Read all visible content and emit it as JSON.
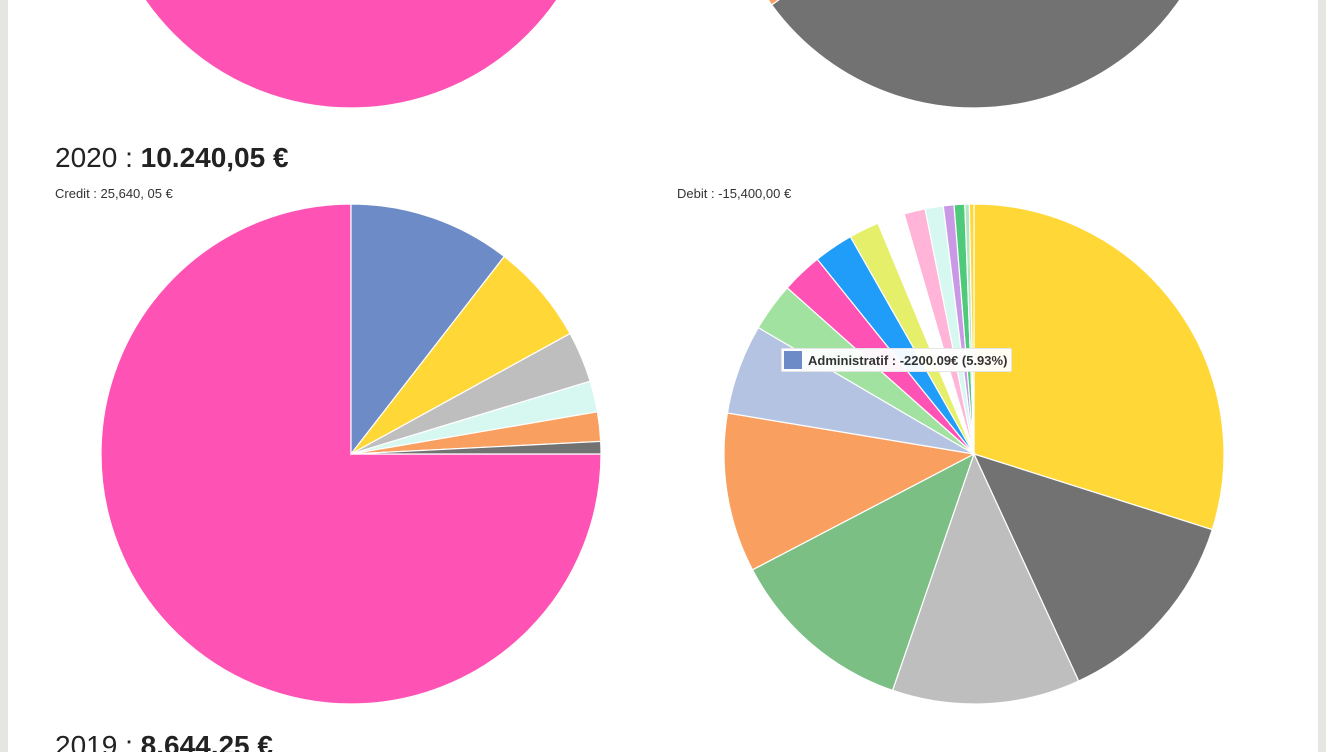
{
  "sections": [
    {
      "heading_prefix": "2020 :",
      "heading_total": "10.240,05 €",
      "credit_label": "Credit : 25,640, 05 €",
      "debit_label": "Debit : -15,400,00 €"
    },
    {
      "heading_prefix": "2019 :",
      "heading_total": "8.644,25 €"
    }
  ],
  "tooltip": {
    "text": "Administratif : -2200.09€ (5.93%)",
    "color": "#6c8bc7"
  },
  "chart_data": [
    {
      "type": "pie",
      "name": "top-credit-partial",
      "values": [
        75,
        25
      ],
      "colors": [
        "#ff52b5",
        "#ffffff"
      ],
      "note": "previous year credit pie, mostly cut off"
    },
    {
      "type": "pie",
      "name": "top-debit-partial",
      "values": [
        40,
        10,
        50
      ],
      "colors": [
        "#727272",
        "#f9a060",
        "#ffffff"
      ]
    },
    {
      "type": "pie",
      "title": "Credit : 25,640, 05 €",
      "slices": [
        {
          "value": 75.0,
          "color": "#ff52b5"
        },
        {
          "value": 10.5,
          "color": "#6c8bc7"
        },
        {
          "value": 6.5,
          "color": "#ffd736"
        },
        {
          "value": 3.3,
          "color": "#bebebe"
        },
        {
          "value": 2.0,
          "color": "#d7f7f1"
        },
        {
          "value": 1.9,
          "color": "#f9a060"
        },
        {
          "value": 0.8,
          "color": "#727272"
        }
      ]
    },
    {
      "type": "pie",
      "title": "Debit : -15,400,00 €",
      "slices": [
        {
          "value": 30.5,
          "color": "#ffd736"
        },
        {
          "value": 13.5,
          "color": "#727272"
        },
        {
          "value": 12.4,
          "color": "#bebebe"
        },
        {
          "value": 12.3,
          "color": "#7cbf85"
        },
        {
          "value": 10.5,
          "color": "#f9a060"
        },
        {
          "value": 5.93,
          "color": "#b4c3e1",
          "label": "Administratif"
        },
        {
          "value": 3.2,
          "color": "#a2e2a0"
        },
        {
          "value": 2.7,
          "color": "#ff52b5"
        },
        {
          "value": 2.6,
          "color": "#209df8"
        },
        {
          "value": 2.0,
          "color": "#e6ef6a"
        },
        {
          "value": 1.8,
          "color": "#ffffff"
        },
        {
          "value": 1.4,
          "color": "#ffb4d8"
        },
        {
          "value": 1.2,
          "color": "#d7f7f1"
        },
        {
          "value": 0.7,
          "color": "#c999e6"
        },
        {
          "value": 0.7,
          "color": "#4fc97a"
        },
        {
          "value": 0.3,
          "color": "#b4e6c0"
        },
        {
          "value": 0.3,
          "color": "#ffd736"
        }
      ]
    }
  ]
}
